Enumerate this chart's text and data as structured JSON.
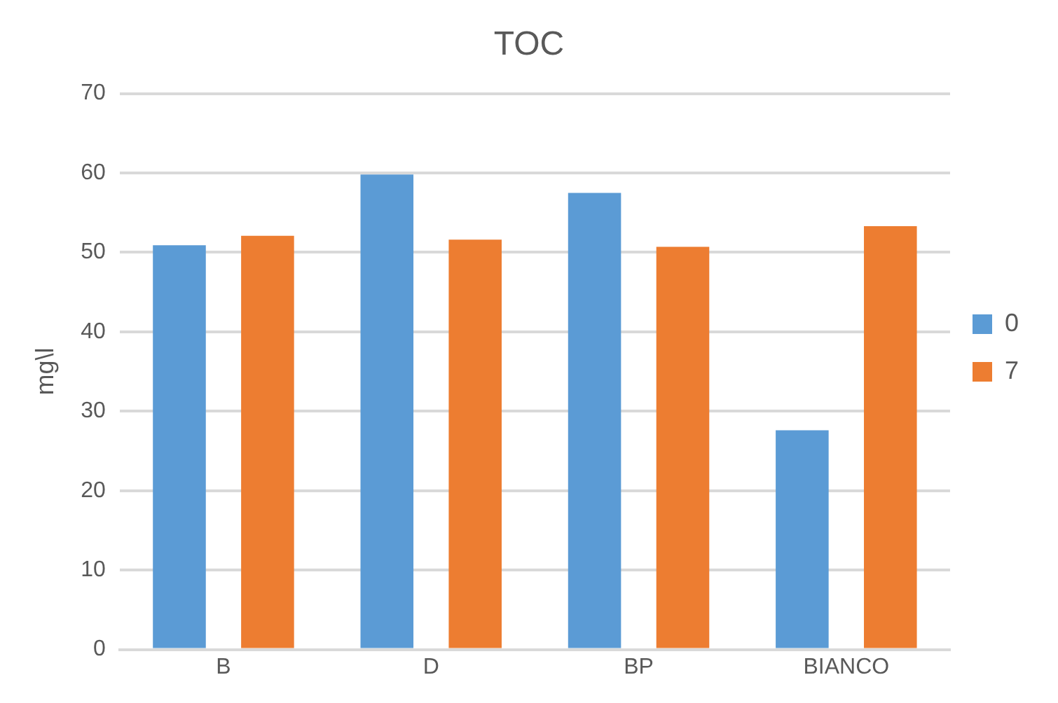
{
  "chart_data": {
    "type": "bar",
    "title": "TOC",
    "ylabel": "mg\\l",
    "categories": [
      "B",
      "D",
      "BP",
      "BIANCO"
    ],
    "series": [
      {
        "name": "0",
        "color": "#5b9bd5",
        "values": [
          50.9,
          59.8,
          57.5,
          27.6
        ]
      },
      {
        "name": "7",
        "color": "#ed7d31",
        "values": [
          52.1,
          51.6,
          50.7,
          53.3
        ]
      }
    ],
    "ylim": [
      0,
      70
    ],
    "yticks": [
      0,
      10,
      20,
      30,
      40,
      50,
      60,
      70
    ],
    "grid": "y",
    "legend": "right"
  }
}
